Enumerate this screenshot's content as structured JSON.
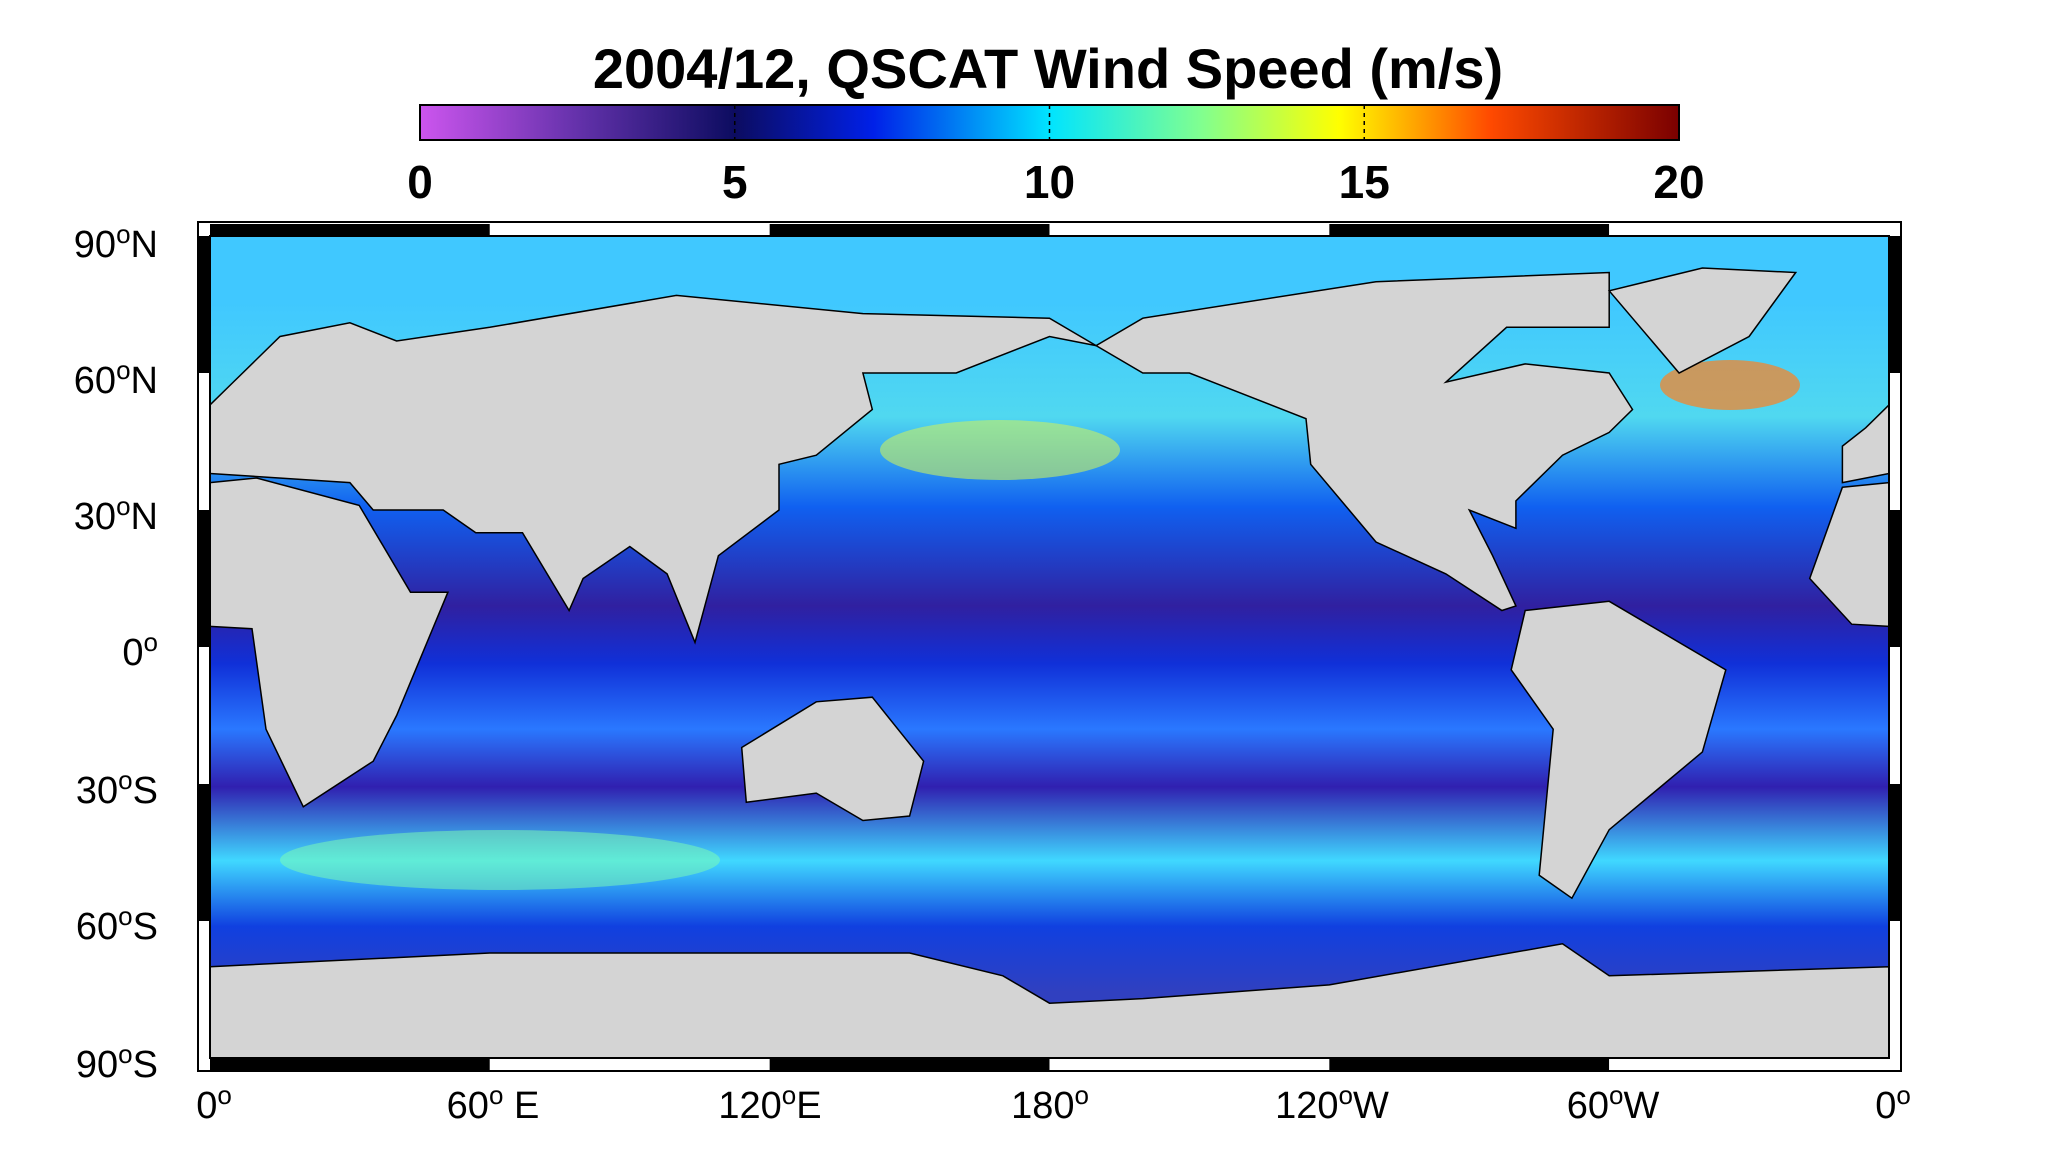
{
  "title": "2004/12,  QSCAT Wind Speed (m/s)",
  "colorbar": {
    "lim": [
      0,
      20
    ],
    "ticks": [
      0,
      5,
      10,
      15,
      20
    ]
  },
  "lat_labels": [
    {
      "number": "90",
      "sup": "o",
      "suffix": "N"
    },
    {
      "number": "60",
      "sup": "o",
      "suffix": "N"
    },
    {
      "number": "30",
      "sup": "o",
      "suffix": "N"
    },
    {
      "number": "0",
      "sup": "o"
    },
    {
      "number": "30",
      "sup": "o",
      "suffix": "S"
    },
    {
      "number": "60",
      "sup": "o",
      "suffix": "S"
    },
    {
      "number": "90",
      "sup": "o",
      "suffix": "S"
    }
  ],
  "lon_labels": [
    {
      "number": "0",
      "sup": "o"
    },
    {
      "number": "60",
      "sup": "o",
      "suffix": " E"
    },
    {
      "number": "120",
      "sup": "o",
      "suffix": "E"
    },
    {
      "number": "180",
      "sup": "o"
    },
    {
      "number": "120",
      "sup": "o",
      "suffix": "W"
    },
    {
      "number": "60",
      "sup": "o",
      "suffix": "W"
    },
    {
      "number": "0",
      "sup": "o"
    }
  ]
}
